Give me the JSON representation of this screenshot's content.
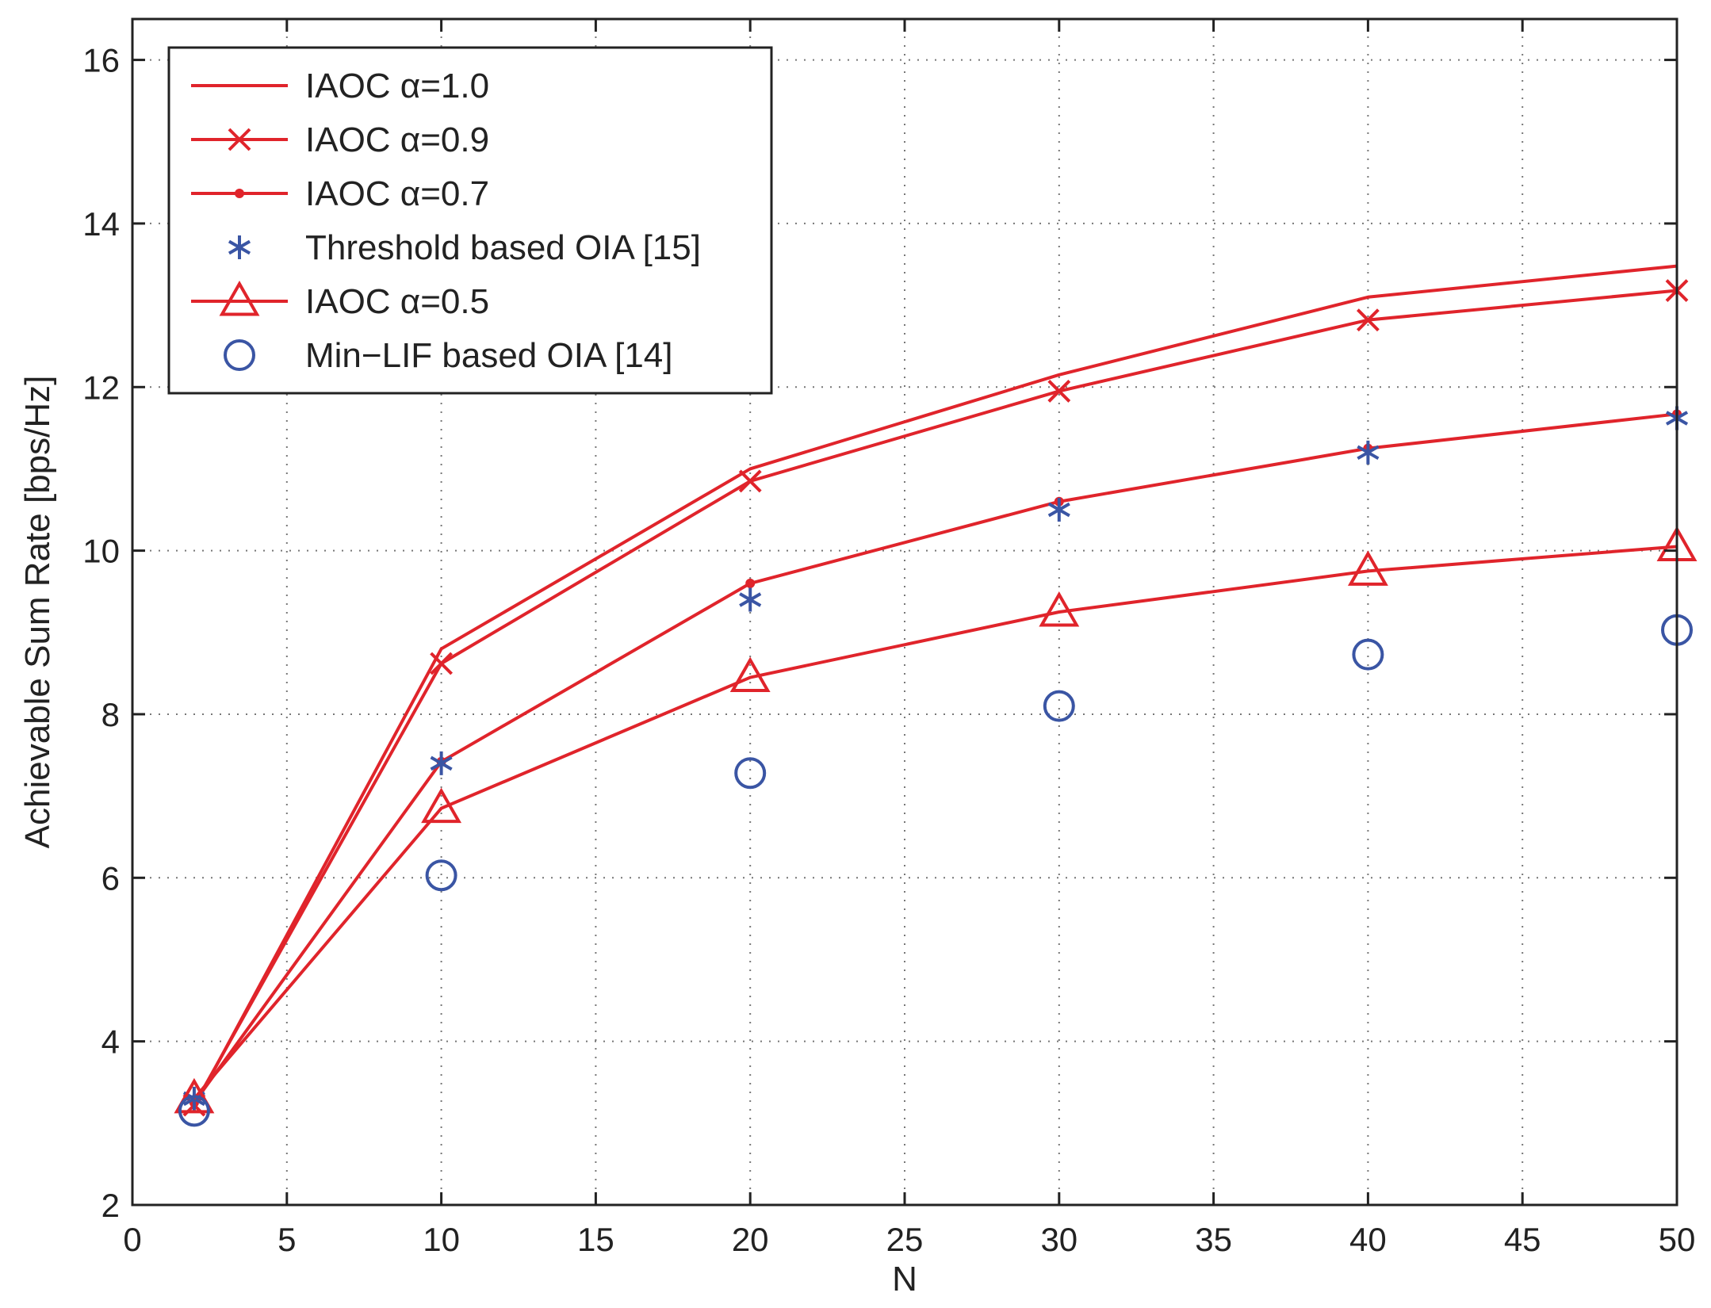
{
  "chart_data": {
    "type": "line",
    "title": "",
    "xlabel": "N",
    "ylabel": "Achievable Sum Rate [bps/Hz]",
    "xlim": [
      0,
      50
    ],
    "ylim": [
      2,
      16.5
    ],
    "xticks": [
      0,
      5,
      10,
      15,
      20,
      25,
      30,
      35,
      40,
      45,
      50
    ],
    "yticks": [
      2,
      4,
      6,
      8,
      10,
      12,
      14,
      16
    ],
    "grid": true,
    "legend_position": "top-left",
    "x": [
      2,
      10,
      20,
      30,
      40,
      50
    ],
    "series": [
      {
        "name": "IAOC α=1.0",
        "values": [
          3.2,
          8.8,
          11.0,
          12.15,
          13.1,
          13.48
        ],
        "color": "#e0242b",
        "line": true,
        "marker": "none"
      },
      {
        "name": "IAOC α=0.9",
        "values": [
          3.22,
          8.62,
          10.85,
          11.95,
          12.82,
          13.18
        ],
        "color": "#e0242b",
        "line": true,
        "marker": "x"
      },
      {
        "name": "IAOC α=0.7",
        "values": [
          3.25,
          7.42,
          9.6,
          10.6,
          11.25,
          11.67
        ],
        "color": "#e0242b",
        "line": true,
        "marker": "dot"
      },
      {
        "name": "Threshold based OIA [15]",
        "values": [
          3.3,
          7.4,
          9.4,
          10.5,
          11.2,
          11.62
        ],
        "color": "#3a55a4",
        "line": false,
        "marker": "asterisk"
      },
      {
        "name": "IAOC α=0.5",
        "values": [
          3.3,
          6.85,
          8.45,
          9.25,
          9.75,
          10.05
        ],
        "color": "#e0242b",
        "line": true,
        "marker": "triangle"
      },
      {
        "name": "Min−LIF based OIA [14]",
        "values": [
          3.15,
          6.03,
          7.28,
          8.1,
          8.73,
          9.03
        ],
        "color": "#3a55a4",
        "line": false,
        "marker": "circle"
      }
    ]
  }
}
